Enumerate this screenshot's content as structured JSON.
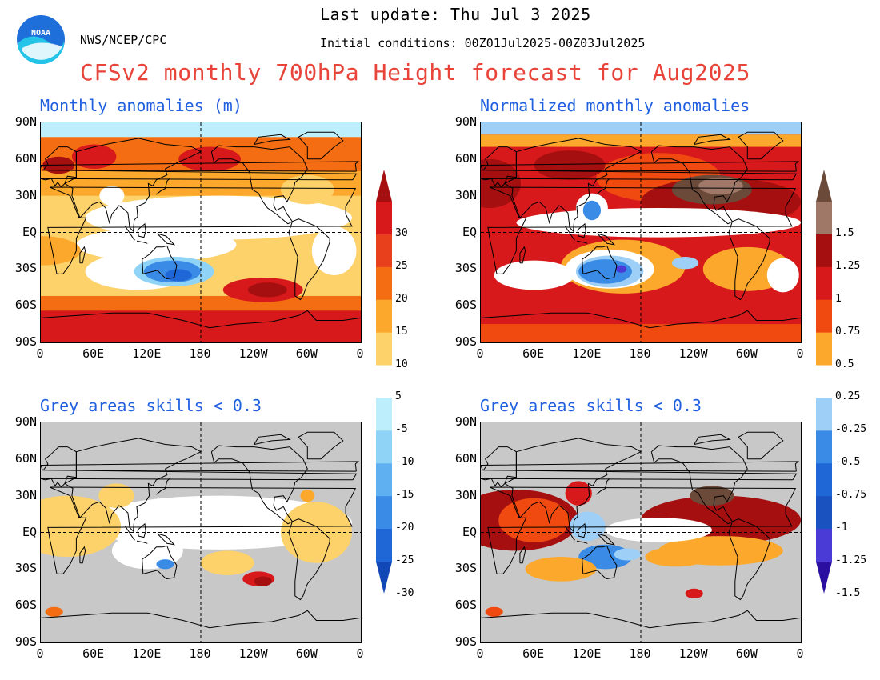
{
  "header": {
    "last_update": "Last update: Thu Jul 3 2025",
    "initial_conditions": "Initial conditions: 00Z01Jul2025-00Z03Jul2025",
    "organization": "NWS/NCEP/CPC",
    "logo_text": "NOAA",
    "main_title": "CFSv2 monthly 700hPa Height forecast for Aug2025"
  },
  "panels": [
    {
      "id": "tl",
      "title": "Monthly anomalies (m)"
    },
    {
      "id": "tr",
      "title": "Normalized monthly anomalies"
    },
    {
      "id": "bl",
      "title": "Grey areas skills < 0.3"
    },
    {
      "id": "br",
      "title": "Grey areas skills < 0.3"
    }
  ],
  "axes": {
    "lat_labels": [
      "90N",
      "60N",
      "30N",
      "EQ",
      "30S",
      "60S",
      "90S"
    ],
    "lon_labels": [
      "0",
      "60E",
      "120E",
      "180",
      "120W",
      "60W",
      "0"
    ]
  },
  "colorbar_left": {
    "labels": [
      "30",
      "25",
      "20",
      "15",
      "10",
      "5",
      "-5",
      "-10",
      "-15",
      "-20",
      "-25",
      "-30"
    ],
    "colors": [
      "#a50f0f",
      "#d7191c",
      "#e8401c",
      "#f46d12",
      "#fca82c",
      "#fdd26b",
      "#ffffff",
      "#bdeefb",
      "#8fd3f7",
      "#5fb0f0",
      "#3a8be6",
      "#1f66d6",
      "#1247b8"
    ]
  },
  "colorbar_right": {
    "labels": [
      "1.5",
      "1.25",
      "1",
      "0.75",
      "0.5",
      "0.25",
      "-0.25",
      "-0.5",
      "-0.75",
      "-1",
      "-1.25",
      "-1.5"
    ],
    "colors": [
      "#6b4a3a",
      "#a07868",
      "#a50f0f",
      "#d7191c",
      "#f04a10",
      "#fca82c",
      "#ffffff",
      "#9ecff7",
      "#3a8be6",
      "#1f66d6",
      "#1a52c0",
      "#4a3ad6",
      "#2a0fa0"
    ]
  }
}
